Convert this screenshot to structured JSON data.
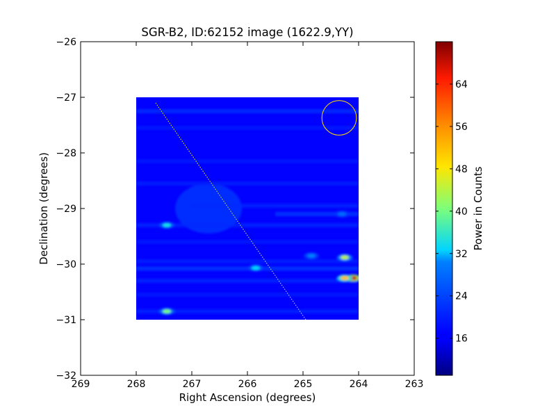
{
  "chart_data": {
    "type": "heatmap",
    "title": "SGR-B2, ID:62152 image (1622.9,YY)",
    "xlabel": "Right Ascension (degrees)",
    "ylabel": "Declination (degrees)",
    "xlim": [
      269,
      263
    ],
    "ylim": [
      -32,
      -26
    ],
    "x_ticks": [
      {
        "value": 269,
        "label": "269"
      },
      {
        "value": 268,
        "label": "268"
      },
      {
        "value": 267,
        "label": "267"
      },
      {
        "value": 266,
        "label": "266"
      },
      {
        "value": 265,
        "label": "265"
      },
      {
        "value": 264,
        "label": "264"
      },
      {
        "value": 263,
        "label": "263"
      }
    ],
    "y_ticks": [
      {
        "value": -26,
        "label": "−26"
      },
      {
        "value": -27,
        "label": "−27"
      },
      {
        "value": -28,
        "label": "−28"
      },
      {
        "value": -29,
        "label": "−29"
      },
      {
        "value": -30,
        "label": "−30"
      },
      {
        "value": -31,
        "label": "−31"
      },
      {
        "value": -32,
        "label": "−32"
      }
    ],
    "image_extent": {
      "ra": [
        268.0,
        264.0
      ],
      "dec": [
        -31.0,
        -27.0
      ]
    },
    "colormap": "jet",
    "colorbar": {
      "label": "Power in Counts",
      "range": [
        9,
        72
      ],
      "ticks": [
        {
          "value": 16,
          "label": "16"
        },
        {
          "value": 24,
          "label": "24"
        },
        {
          "value": 32,
          "label": "32"
        },
        {
          "value": 40,
          "label": "40"
        },
        {
          "value": 48,
          "label": "48"
        },
        {
          "value": 56,
          "label": "56"
        },
        {
          "value": 64,
          "label": "64"
        }
      ]
    },
    "background_level": 17,
    "streaks": [
      {
        "dec": -27.25,
        "ra_from": 268.0,
        "ra_to": 264.0,
        "level": 22
      },
      {
        "dec": -27.55,
        "ra_from": 268.0,
        "ra_to": 264.0,
        "level": 19
      },
      {
        "dec": -28.15,
        "ra_from": 268.0,
        "ra_to": 264.0,
        "level": 19
      },
      {
        "dec": -28.55,
        "ra_from": 268.0,
        "ra_to": 264.0,
        "level": 20
      },
      {
        "dec": -28.95,
        "ra_from": 267.0,
        "ra_to": 264.0,
        "level": 21
      },
      {
        "dec": -29.1,
        "ra_from": 265.5,
        "ra_to": 264.0,
        "level": 23
      },
      {
        "dec": -29.3,
        "ra_from": 268.0,
        "ra_to": 264.0,
        "level": 21
      },
      {
        "dec": -29.6,
        "ra_from": 268.0,
        "ra_to": 264.0,
        "level": 19
      },
      {
        "dec": -29.95,
        "ra_from": 268.0,
        "ra_to": 264.0,
        "level": 20
      },
      {
        "dec": -30.08,
        "ra_from": 268.0,
        "ra_to": 264.0,
        "level": 23
      },
      {
        "dec": -30.3,
        "ra_from": 268.0,
        "ra_to": 264.0,
        "level": 21
      },
      {
        "dec": -30.55,
        "ra_from": 268.0,
        "ra_to": 264.0,
        "level": 19
      },
      {
        "dec": -30.85,
        "ra_from": 268.0,
        "ra_to": 264.0,
        "level": 21
      }
    ],
    "diffuse_regions": [
      {
        "ra": 266.7,
        "dec": -29.0,
        "ra_sigma": 0.6,
        "dec_sigma": 0.45,
        "level": 23
      }
    ],
    "hot_spots": [
      {
        "ra": 264.1,
        "dec": -30.25,
        "value": 68
      },
      {
        "ra": 264.25,
        "dec": -30.25,
        "value": 52
      },
      {
        "ra": 264.25,
        "dec": -29.88,
        "value": 44
      },
      {
        "ra": 267.45,
        "dec": -30.85,
        "value": 40
      },
      {
        "ra": 267.45,
        "dec": -29.3,
        "value": 34
      },
      {
        "ra": 265.85,
        "dec": -30.07,
        "value": 33
      },
      {
        "ra": 264.85,
        "dec": -29.85,
        "value": 30
      },
      {
        "ra": 264.3,
        "dec": -29.1,
        "value": 28
      }
    ],
    "overlays": {
      "galactic_plane_line": {
        "from": {
          "ra": 267.65,
          "dec": -27.1
        },
        "to": {
          "ra": 264.95,
          "dec": -31.0
        },
        "style": "dotted",
        "color": "#e8e84a"
      },
      "source_circle": {
        "ra": 264.35,
        "dec": -27.37,
        "radius_deg": 0.31,
        "color": "#ffe000"
      }
    }
  }
}
